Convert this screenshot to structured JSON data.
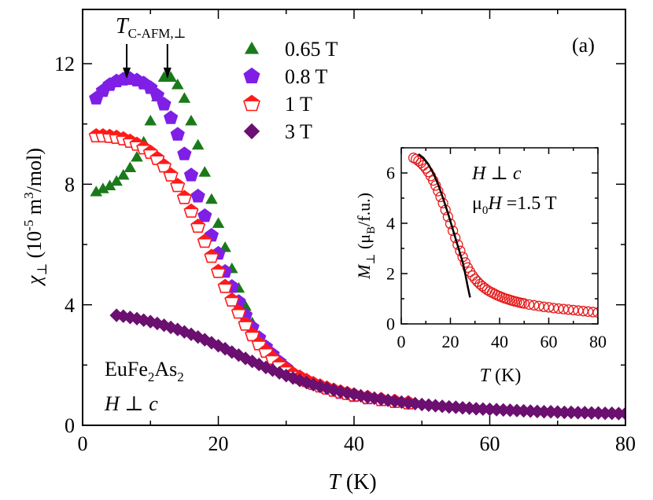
{
  "chart_data": [
    {
      "type": "scatter",
      "panel_label": "(a)",
      "xlabel": {
        "italic": "T",
        "rest": " (K)"
      },
      "ylabel": {
        "symbol": "χ",
        "sub": "⊥",
        "unit": "(10",
        "sup1": "-5",
        "mid": " m",
        "sup2": "3",
        "end": "/mol)"
      },
      "xlim": [
        0,
        80
      ],
      "ylim": [
        0,
        13.8
      ],
      "xticks": [
        0,
        20,
        40,
        60,
        80
      ],
      "xtick_labels": [
        "0",
        "20",
        "40",
        "60",
        "80"
      ],
      "yticks": [
        0,
        4,
        8,
        12
      ],
      "ytick_labels": [
        "0",
        "4",
        "8",
        "12"
      ],
      "annotations": {
        "tc_label": {
          "italic": "T",
          "sub": "C-AFM,⊥"
        },
        "tc_arrows_at_x": [
          6.5,
          12.5
        ],
        "sample_label": {
          "prefix": "EuFe",
          "sub1": "2",
          "mid": "As",
          "sub2": "2"
        },
        "field_label": {
          "italic1": "H",
          "rest": " ⊥ ",
          "italic2": "c"
        }
      },
      "legend": {
        "placement": "top-center"
      },
      "series": [
        {
          "name": "0.65 T",
          "marker": "triangle",
          "color": "#1a7a1a",
          "filled": true,
          "x": [
            2,
            3,
            4,
            5,
            6,
            7,
            8,
            9,
            10,
            11,
            12,
            13,
            14,
            15,
            16,
            17,
            18,
            19,
            20,
            21,
            22,
            23,
            24,
            25,
            26,
            27,
            28,
            29,
            30,
            32,
            34,
            36,
            38,
            40,
            42,
            45,
            48
          ],
          "y": [
            7.75,
            7.85,
            7.95,
            8.1,
            8.3,
            8.55,
            8.9,
            9.4,
            10.1,
            10.9,
            11.55,
            11.55,
            11.3,
            10.85,
            10.1,
            9.3,
            8.4,
            7.5,
            6.7,
            5.9,
            5.2,
            4.55,
            3.95,
            3.4,
            2.95,
            2.6,
            2.3,
            2.05,
            1.85,
            1.55,
            1.35,
            1.2,
            1.08,
            0.98,
            0.9,
            0.8,
            0.72
          ]
        },
        {
          "name": "0.8 T",
          "marker": "pentagon",
          "color": "#7f1fe6",
          "filled": true,
          "x": [
            2,
            3,
            4,
            5,
            6,
            7,
            8,
            9,
            10,
            11,
            12,
            13,
            14,
            15,
            16,
            17,
            18,
            19,
            20,
            21,
            22,
            23,
            24,
            25,
            26,
            27,
            28,
            29,
            30,
            32,
            34,
            36,
            38,
            40,
            42,
            44,
            46
          ],
          "y": [
            10.85,
            11.1,
            11.3,
            11.42,
            11.48,
            11.5,
            11.45,
            11.35,
            11.2,
            10.95,
            10.65,
            10.2,
            9.65,
            9.0,
            8.3,
            7.6,
            6.95,
            6.3,
            5.7,
            5.1,
            4.6,
            4.1,
            3.65,
            3.25,
            2.9,
            2.6,
            2.35,
            2.1,
            1.9,
            1.6,
            1.38,
            1.22,
            1.08,
            0.98,
            0.9,
            0.84,
            0.78
          ]
        },
        {
          "name": "1 T",
          "marker": "pentagon",
          "color": "#ff1a1a",
          "filled": false,
          "fill_half": true,
          "x": [
            2,
            3,
            4,
            5,
            6,
            7,
            8,
            9,
            10,
            11,
            12,
            13,
            14,
            15,
            16,
            17,
            18,
            19,
            20,
            21,
            22,
            23,
            24,
            25,
            26,
            27,
            28,
            29,
            30,
            31,
            32,
            33,
            34,
            35,
            36,
            37,
            38,
            39,
            40,
            42,
            44,
            46,
            48
          ],
          "y": [
            9.6,
            9.6,
            9.58,
            9.55,
            9.5,
            9.42,
            9.32,
            9.2,
            9.05,
            8.85,
            8.6,
            8.3,
            7.95,
            7.55,
            7.1,
            6.6,
            6.1,
            5.6,
            5.1,
            4.6,
            4.15,
            3.75,
            3.35,
            3.0,
            2.7,
            2.45,
            2.22,
            2.02,
            1.85,
            1.7,
            1.58,
            1.48,
            1.38,
            1.3,
            1.23,
            1.16,
            1.1,
            1.05,
            1.0,
            0.92,
            0.85,
            0.79,
            0.74
          ]
        },
        {
          "name": "3 T",
          "marker": "diamond",
          "color": "#6b0f70",
          "filled": true,
          "x": [
            5,
            6,
            7,
            8,
            9,
            10,
            11,
            12,
            13,
            14,
            15,
            16,
            17,
            18,
            19,
            20,
            21,
            22,
            23,
            24,
            25,
            26,
            27,
            28,
            29,
            30,
            31,
            32,
            33,
            34,
            35,
            36,
            37,
            38,
            39,
            40,
            41,
            42,
            43,
            44,
            45,
            46,
            47,
            48,
            49,
            50,
            51,
            52,
            53,
            54,
            55,
            56,
            57,
            58,
            59,
            60,
            61,
            62,
            63,
            64,
            65,
            66,
            67,
            68,
            69,
            70,
            71,
            72,
            73,
            74,
            75,
            76,
            77,
            78,
            79,
            80
          ],
          "y": [
            3.65,
            3.62,
            3.58,
            3.54,
            3.49,
            3.44,
            3.38,
            3.32,
            3.25,
            3.18,
            3.1,
            3.02,
            2.93,
            2.84,
            2.74,
            2.64,
            2.54,
            2.43,
            2.33,
            2.22,
            2.12,
            2.02,
            1.92,
            1.83,
            1.74,
            1.65,
            1.57,
            1.49,
            1.42,
            1.35,
            1.29,
            1.23,
            1.17,
            1.12,
            1.07,
            1.03,
            0.98,
            0.94,
            0.9,
            0.87,
            0.83,
            0.8,
            0.77,
            0.74,
            0.72,
            0.69,
            0.67,
            0.65,
            0.63,
            0.61,
            0.6,
            0.58,
            0.57,
            0.55,
            0.54,
            0.53,
            0.52,
            0.51,
            0.5,
            0.49,
            0.48,
            0.47,
            0.46,
            0.45,
            0.45,
            0.44,
            0.43,
            0.43,
            0.42,
            0.42,
            0.41,
            0.41,
            0.4,
            0.4,
            0.39,
            0.39
          ]
        }
      ]
    },
    {
      "type": "scatter",
      "panel_label": "inset",
      "xlabel": {
        "italic": "T",
        "rest": " (K)"
      },
      "ylabel": {
        "italic": "M",
        "sub": "⊥",
        "unit": " (μ",
        "sub2": "B",
        "end": "/f.u.)"
      },
      "xlim": [
        0,
        80
      ],
      "ylim": [
        0,
        7
      ],
      "xticks": [
        0,
        20,
        40,
        60,
        80
      ],
      "xtick_labels": [
        "0",
        "20",
        "40",
        "60",
        "80"
      ],
      "yticks": [
        0,
        2,
        4,
        6
      ],
      "ytick_labels": [
        "0",
        "2",
        "4",
        "6"
      ],
      "annotations": {
        "field_dir": {
          "italic1": "H",
          "rest": " ⊥ ",
          "italic2": "c"
        },
        "field_val": {
          "prefix": "μ",
          "sub": "0",
          "italic": "H",
          "rest": " =1.5 T"
        }
      },
      "series": [
        {
          "name": "",
          "marker": "circle",
          "color": "#e51a1a",
          "filled": false,
          "x": [
            5,
            6,
            7,
            8,
            9,
            10,
            11,
            12,
            13,
            14,
            15,
            16,
            17,
            18,
            19,
            20,
            21,
            22,
            23,
            24,
            25,
            26,
            27,
            28,
            29,
            30,
            31,
            32,
            33,
            34,
            35,
            36,
            37,
            38,
            39,
            40,
            41,
            42,
            43,
            44,
            45,
            46,
            47,
            48,
            49,
            50,
            52,
            54,
            56,
            58,
            60,
            62,
            64,
            66,
            68,
            70,
            72,
            74,
            76,
            78,
            80
          ],
          "y": [
            6.6,
            6.55,
            6.48,
            6.4,
            6.3,
            6.18,
            6.04,
            5.88,
            5.7,
            5.5,
            5.28,
            5.05,
            4.8,
            4.53,
            4.26,
            3.98,
            3.7,
            3.42,
            3.15,
            2.9,
            2.66,
            2.44,
            2.24,
            2.07,
            1.92,
            1.79,
            1.68,
            1.58,
            1.5,
            1.42,
            1.35,
            1.29,
            1.24,
            1.19,
            1.14,
            1.1,
            1.06,
            1.02,
            0.99,
            0.96,
            0.93,
            0.9,
            0.88,
            0.85,
            0.83,
            0.81,
            0.77,
            0.74,
            0.71,
            0.68,
            0.66,
            0.63,
            0.61,
            0.59,
            0.57,
            0.55,
            0.53,
            0.51,
            0.49,
            0.47,
            0.45
          ]
        },
        {
          "name": "",
          "marker": "line",
          "color": "#000000",
          "x": [
            7,
            9,
            11,
            13,
            15,
            17,
            19,
            21,
            23,
            25,
            26,
            27,
            28
          ],
          "y": [
            6.75,
            6.6,
            6.35,
            6.0,
            5.55,
            5.0,
            4.4,
            3.75,
            3.1,
            2.45,
            2.0,
            1.5,
            1.05
          ]
        }
      ]
    }
  ]
}
